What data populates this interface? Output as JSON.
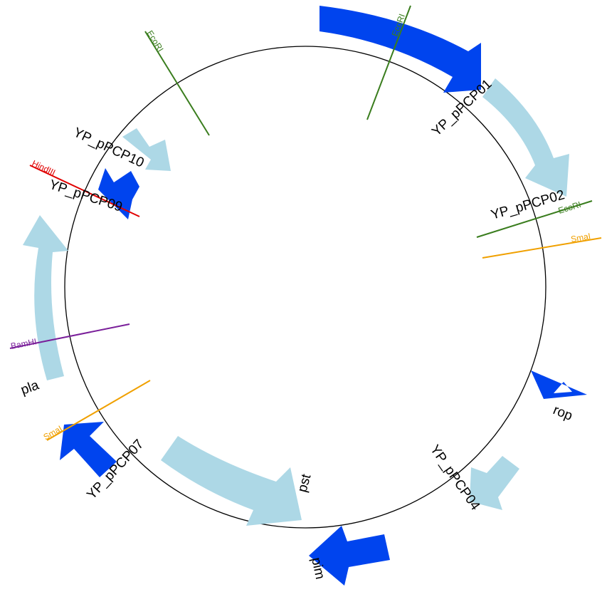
{
  "plasmid": {
    "features": [
      {
        "id": "f-yp01",
        "name": "YP_pPCP01",
        "color": "#0044ee"
      },
      {
        "id": "f-yp02",
        "name": "YP_pPCP02",
        "color": "#add8e6"
      },
      {
        "id": "f-rop",
        "name": "rop",
        "color": "#0044ee"
      },
      {
        "id": "f-yp04",
        "name": "YP_pPCP04",
        "color": "#add8e6"
      },
      {
        "id": "f-pim",
        "name": "pim",
        "color": "#0044ee"
      },
      {
        "id": "f-pst",
        "name": "pst",
        "color": "#add8e6"
      },
      {
        "id": "f-yp07",
        "name": "YP_pPCP07",
        "color": "#0044ee"
      },
      {
        "id": "f-pla",
        "name": "pla",
        "color": "#add8e6"
      },
      {
        "id": "f-yp09",
        "name": "YP_pPCP09",
        "color": "#0044ee"
      },
      {
        "id": "f-yp10",
        "name": "YP_pPCP10",
        "color": "#add8e6"
      }
    ],
    "sites": [
      {
        "id": "s-ecori-1",
        "name": "EcoRI",
        "color": "#3a7d1e"
      },
      {
        "id": "s-ecori-2",
        "name": "EcoRI",
        "color": "#3a7d1e"
      },
      {
        "id": "s-smai-1",
        "name": "SmaI",
        "color": "#f0a000"
      },
      {
        "id": "s-smai-2",
        "name": "SmaI",
        "color": "#f0a000"
      },
      {
        "id": "s-bamhi",
        "name": "BamHI",
        "color": "#7a1f9a"
      },
      {
        "id": "s-hindiii",
        "name": "HindIII",
        "color": "#e00000"
      },
      {
        "id": "s-ecori-3",
        "name": "EcoRI",
        "color": "#3a7d1e"
      }
    ]
  }
}
